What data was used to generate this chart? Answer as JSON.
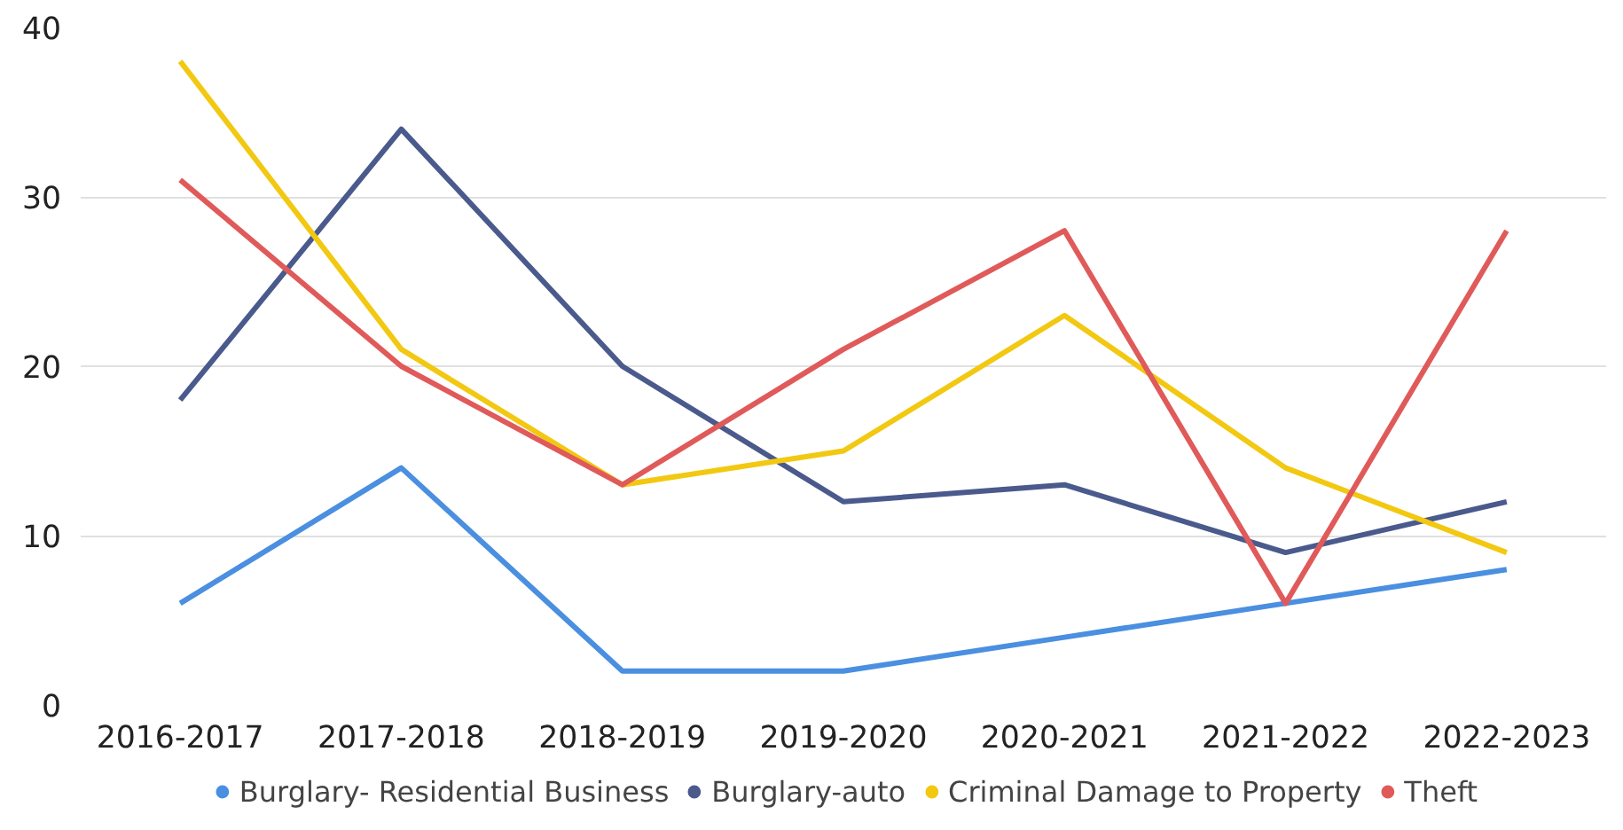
{
  "chart_data": {
    "type": "line",
    "categories": [
      "2016-2017",
      "2017-2018",
      "2018-2019",
      "2019-2020",
      "2020-2021",
      "2021-2022",
      "2022-2023"
    ],
    "series": [
      {
        "name": "Burglary- Residential Business",
        "color": "#4a8fe0",
        "values": [
          6,
          14,
          2,
          2,
          4,
          6,
          8
        ]
      },
      {
        "name": "Burglary-auto",
        "color": "#4a5a8c",
        "values": [
          18,
          34,
          20,
          12,
          13,
          9,
          12
        ]
      },
      {
        "name": "Criminal Damage to Property",
        "color": "#f2c811",
        "values": [
          38,
          21,
          13,
          15,
          23,
          14,
          9
        ]
      },
      {
        "name": "Theft",
        "color": "#e05a5a",
        "values": [
          31,
          20,
          13,
          21,
          28,
          6,
          28
        ]
      }
    ],
    "ylim": [
      0,
      40
    ],
    "yticks": [
      0,
      10,
      20,
      30,
      40
    ],
    "grid": "y",
    "legend": "bottom",
    "marker": "none",
    "line_style": "solid"
  }
}
